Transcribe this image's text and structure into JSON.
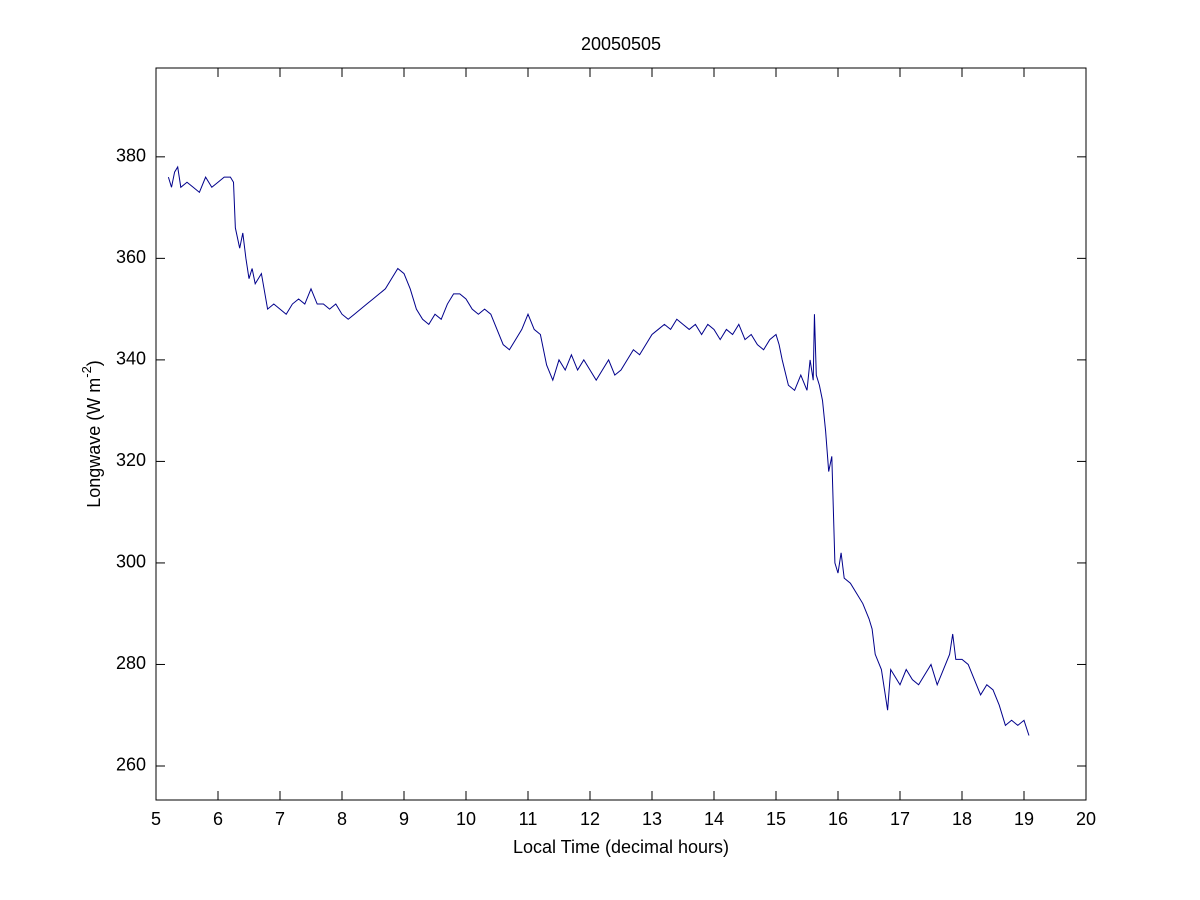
{
  "chart_data": {
    "type": "line",
    "title": "20050505",
    "xlabel": "Local Time (decimal hours)",
    "ylabel": [
      "Longwave (W m",
      "-2",
      ")"
    ],
    "color": "#00008b",
    "x": [
      5.2,
      5.25,
      5.3,
      5.35,
      5.4,
      5.5,
      5.6,
      5.7,
      5.8,
      5.9,
      6.0,
      6.1,
      6.2,
      6.25,
      6.28,
      6.35,
      6.4,
      6.45,
      6.5,
      6.55,
      6.6,
      6.7,
      6.8,
      6.9,
      7.0,
      7.1,
      7.2,
      7.3,
      7.4,
      7.5,
      7.6,
      7.7,
      7.8,
      7.9,
      8.0,
      8.1,
      8.2,
      8.3,
      8.4,
      8.5,
      8.6,
      8.7,
      8.8,
      8.9,
      9.0,
      9.1,
      9.2,
      9.3,
      9.4,
      9.5,
      9.6,
      9.7,
      9.8,
      9.9,
      10.0,
      10.1,
      10.2,
      10.3,
      10.4,
      10.5,
      10.6,
      10.7,
      10.8,
      10.9,
      11.0,
      11.1,
      11.2,
      11.3,
      11.4,
      11.5,
      11.6,
      11.7,
      11.8,
      11.9,
      12.0,
      12.1,
      12.2,
      12.3,
      12.4,
      12.5,
      12.6,
      12.7,
      12.8,
      12.9,
      13.0,
      13.1,
      13.2,
      13.3,
      13.4,
      13.5,
      13.6,
      13.7,
      13.8,
      13.9,
      14.0,
      14.1,
      14.2,
      14.3,
      14.4,
      14.5,
      14.6,
      14.7,
      14.8,
      14.9,
      15.0,
      15.05,
      15.1,
      15.2,
      15.3,
      15.4,
      15.5,
      15.55,
      15.6,
      15.62,
      15.65,
      15.7,
      15.75,
      15.8,
      15.85,
      15.9,
      15.95,
      16.0,
      16.05,
      16.1,
      16.2,
      16.3,
      16.4,
      16.5,
      16.55,
      16.6,
      16.7,
      16.75,
      16.8,
      16.85,
      16.9,
      17.0,
      17.1,
      17.2,
      17.3,
      17.4,
      17.5,
      17.6,
      17.7,
      17.8,
      17.85,
      17.9,
      18.0,
      18.1,
      18.2,
      18.3,
      18.4,
      18.5,
      18.6,
      18.7,
      18.8,
      18.9,
      19.0,
      19.08
    ],
    "values": [
      376,
      374,
      377,
      378,
      374,
      375,
      374,
      373,
      376,
      374,
      375,
      376,
      376,
      375,
      366,
      362,
      365,
      360,
      356,
      358,
      355,
      357,
      350,
      351,
      350,
      349,
      351,
      352,
      351,
      354,
      351,
      351,
      350,
      351,
      349,
      348,
      349,
      350,
      351,
      352,
      353,
      354,
      356,
      358,
      357,
      354,
      350,
      348,
      347,
      349,
      348,
      351,
      353,
      353,
      352,
      350,
      349,
      350,
      349,
      346,
      343,
      342,
      344,
      346,
      349,
      346,
      345,
      339,
      336,
      340,
      338,
      341,
      338,
      340,
      338,
      336,
      338,
      340,
      337,
      338,
      340,
      342,
      341,
      343,
      345,
      346,
      347,
      346,
      348,
      347,
      346,
      347,
      345,
      347,
      346,
      344,
      346,
      345,
      347,
      344,
      345,
      343,
      342,
      344,
      345,
      343,
      340,
      335,
      334,
      337,
      334,
      340,
      336,
      349,
      337,
      335,
      332,
      326,
      318,
      321,
      300,
      298,
      302,
      297,
      296,
      294,
      292,
      289,
      287,
      282,
      279,
      275,
      271,
      279,
      278,
      276,
      279,
      277,
      276,
      278,
      280,
      276,
      279,
      282,
      286,
      281,
      281,
      280,
      277,
      274,
      276,
      275,
      272,
      268,
      269,
      268,
      269,
      266
    ],
    "xlim": [
      5,
      20
    ],
    "xticks": [
      5,
      6,
      7,
      8,
      9,
      10,
      11,
      12,
      13,
      14,
      15,
      16,
      17,
      18,
      19,
      20
    ],
    "ylim": [
      253.3,
      397.5
    ],
    "yticks": [
      260,
      280,
      300,
      320,
      340,
      360,
      380
    ],
    "grid": false
  }
}
